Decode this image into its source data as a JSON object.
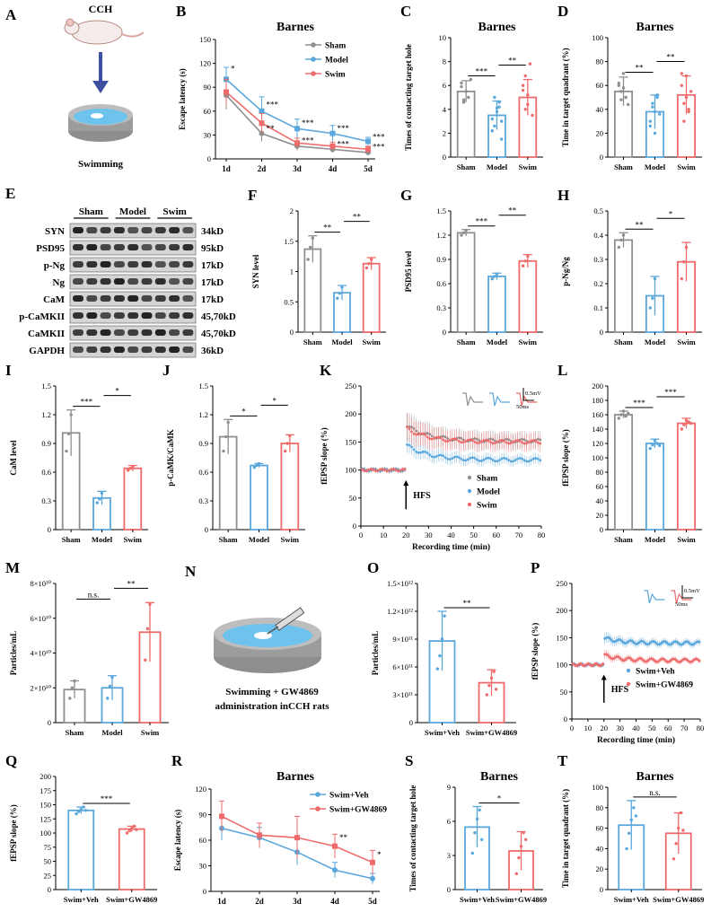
{
  "colors": {
    "sham": "#8f8f8f",
    "model": "#5aa7dc",
    "swim": "#ef6b6b",
    "swimveh": "#5aa7dc",
    "gw": "#ef6b6b"
  },
  "illustrations": {
    "A": {
      "label": "A",
      "title": "CCH",
      "caption": "Swimming"
    },
    "N": {
      "label": "N",
      "caption_line1": "Swimming + GW4869",
      "caption_line2": "administration inCCH rats"
    }
  },
  "western": {
    "label": "E",
    "groups": [
      "Sham",
      "Model",
      "Swim"
    ],
    "rows": [
      {
        "protein": "SYN",
        "kd": "34kD"
      },
      {
        "protein": "PSD95",
        "kd": "95kD"
      },
      {
        "protein": "p-Ng",
        "kd": "17kD"
      },
      {
        "protein": "Ng",
        "kd": "17kD"
      },
      {
        "protein": "CaM",
        "kd": "17kD"
      },
      {
        "protein": "p-CaMKII",
        "kd": "45,70kD"
      },
      {
        "protein": "CaMKII",
        "kd": "45,70kD"
      },
      {
        "protein": "GAPDH",
        "kd": "36kD"
      }
    ]
  },
  "chart_data": [
    {
      "id": "B",
      "type": "line",
      "title": "Barnes",
      "ylabel": "Escape latency (s)",
      "xlabel": "",
      "categories": [
        "1d",
        "2d",
        "3d",
        "4d",
        "5d"
      ],
      "ylim": [
        0,
        150
      ],
      "yticks": [
        0,
        30,
        60,
        90,
        120,
        150
      ],
      "legend": "top-right",
      "series": [
        {
          "name": "Sham",
          "color": "sham",
          "values": [
            80,
            32,
            16,
            12,
            8
          ],
          "errors": [
            18,
            10,
            5,
            4,
            3
          ]
        },
        {
          "name": "Model",
          "color": "model",
          "values": [
            100,
            60,
            38,
            32,
            22
          ],
          "errors": [
            15,
            18,
            12,
            10,
            5
          ]
        },
        {
          "name": "Swim",
          "color": "swim",
          "values": [
            84,
            45,
            20,
            16,
            12
          ],
          "errors": [
            16,
            12,
            6,
            5,
            4
          ]
        }
      ],
      "annotations": [
        {
          "cat": 0,
          "value": 110,
          "text": "*"
        },
        {
          "cat": 1,
          "value": 65,
          "text": "***"
        },
        {
          "cat": 1,
          "value": 35,
          "text": "**"
        },
        {
          "cat": 2,
          "value": 42,
          "text": "***"
        },
        {
          "cat": 2,
          "value": 20,
          "text": "***"
        },
        {
          "cat": 3,
          "value": 35,
          "text": "***"
        },
        {
          "cat": 3,
          "value": 15,
          "text": "***"
        },
        {
          "cat": 4,
          "value": 24,
          "text": "***"
        },
        {
          "cat": 4,
          "value": 12,
          "text": "***"
        }
      ]
    },
    {
      "id": "C",
      "type": "bar",
      "title": "Barnes",
      "ylabel": "Times of contacting target hole",
      "categories": [
        "Sham",
        "Model",
        "Swim"
      ],
      "colors": [
        "sham",
        "model",
        "swim"
      ],
      "values": [
        5.5,
        3.5,
        5.0
      ],
      "errors": [
        0.9,
        1.2,
        1.5
      ],
      "ylim": [
        0,
        10
      ],
      "yticks": [
        0,
        2,
        4,
        6,
        8,
        10
      ],
      "points": [
        [
          6.2,
          4.8,
          5.5,
          5.0,
          6.5,
          5.9,
          4.6
        ],
        [
          3.2,
          2.6,
          4.1,
          4.6,
          3.0,
          2.2,
          5.0,
          3.8,
          4.2,
          1.5
        ],
        [
          6.0,
          4.0,
          5.2,
          7.8,
          3.5,
          5.6,
          6.8,
          4.4
        ]
      ],
      "sig": [
        {
          "a": 0,
          "b": 1,
          "level": 1,
          "text": "***"
        },
        {
          "a": 1,
          "b": 2,
          "level": 2,
          "text": "**"
        }
      ]
    },
    {
      "id": "D",
      "type": "bar",
      "title": "Barnes",
      "ylabel": "Time in target quadrant (%)",
      "categories": [
        "Sham",
        "Model",
        "Swim"
      ],
      "colors": [
        "sham",
        "model",
        "swim"
      ],
      "values": [
        55,
        38,
        52
      ],
      "errors": [
        12,
        14,
        16
      ],
      "ylim": [
        0,
        100
      ],
      "yticks": [
        0,
        20,
        40,
        60,
        80,
        100
      ],
      "points": [
        [
          60,
          48,
          70,
          50,
          44,
          62,
          55,
          58
        ],
        [
          30,
          42,
          20,
          50,
          36,
          26,
          45,
          38,
          52
        ],
        [
          60,
          45,
          68,
          38,
          55,
          70,
          30,
          50,
          40
        ]
      ],
      "sig": [
        {
          "a": 0,
          "b": 1,
          "level": 1,
          "text": "**"
        },
        {
          "a": 1,
          "b": 2,
          "level": 2,
          "text": "**"
        }
      ]
    },
    {
      "id": "F",
      "type": "bar",
      "title": "",
      "ylabel": "SYN level",
      "categories": [
        "Sham",
        "Model",
        "Swim"
      ],
      "colors": [
        "sham",
        "model",
        "swim"
      ],
      "values": [
        1.37,
        0.65,
        1.13
      ],
      "errors": [
        0.22,
        0.12,
        0.1
      ],
      "ylim": [
        0,
        2.0
      ],
      "yticks": [
        0.0,
        0.5,
        1.0,
        1.5,
        2.0
      ],
      "points": [
        [
          1.2,
          1.4,
          1.55
        ],
        [
          0.56,
          0.64,
          0.74
        ],
        [
          1.06,
          1.13,
          1.2
        ]
      ],
      "sig": [
        {
          "a": 0,
          "b": 1,
          "level": 1,
          "text": "**"
        },
        {
          "a": 1,
          "b": 2,
          "level": 2,
          "text": "**"
        }
      ]
    },
    {
      "id": "G",
      "type": "bar",
      "title": "",
      "ylabel": "PSD95 level",
      "categories": [
        "Sham",
        "Model",
        "Swim"
      ],
      "colors": [
        "sham",
        "model",
        "swim"
      ],
      "values": [
        1.23,
        0.69,
        0.88
      ],
      "errors": [
        0.04,
        0.04,
        0.08
      ],
      "ylim": [
        0,
        1.5
      ],
      "yticks": [
        0.0,
        0.3,
        0.6,
        0.9,
        1.2,
        1.5
      ],
      "points": [
        [
          1.2,
          1.23,
          1.26
        ],
        [
          0.66,
          0.69,
          0.72
        ],
        [
          0.82,
          0.88,
          0.94
        ]
      ],
      "sig": [
        {
          "a": 0,
          "b": 1,
          "level": 1,
          "text": "***"
        },
        {
          "a": 1,
          "b": 2,
          "level": 2,
          "text": "**"
        }
      ]
    },
    {
      "id": "H",
      "type": "bar",
      "title": "",
      "ylabel": "p-Ng/Ng",
      "categories": [
        "Sham",
        "Model",
        "Swim"
      ],
      "colors": [
        "sham",
        "model",
        "swim"
      ],
      "values": [
        0.38,
        0.15,
        0.29
      ],
      "errors": [
        0.03,
        0.08,
        0.08
      ],
      "ylim": [
        0,
        0.5
      ],
      "yticks": [
        0.0,
        0.1,
        0.2,
        0.3,
        0.4,
        0.5
      ],
      "points": [
        [
          0.35,
          0.38,
          0.4
        ],
        [
          0.1,
          0.14,
          0.22
        ],
        [
          0.22,
          0.29,
          0.35
        ]
      ],
      "sig": [
        {
          "a": 0,
          "b": 1,
          "level": 1,
          "text": "**"
        },
        {
          "a": 1,
          "b": 2,
          "level": 2,
          "text": "*"
        }
      ]
    },
    {
      "id": "I",
      "type": "bar",
      "title": "",
      "ylabel": "CaM level",
      "categories": [
        "Sham",
        "Model",
        "Swim"
      ],
      "colors": [
        "sham",
        "model",
        "swim"
      ],
      "values": [
        1.01,
        0.33,
        0.64
      ],
      "errors": [
        0.24,
        0.07,
        0.03
      ],
      "ylim": [
        0,
        1.5
      ],
      "yticks": [
        0.0,
        0.3,
        0.6,
        0.9,
        1.2,
        1.5
      ],
      "points": [
        [
          0.82,
          1.0,
          1.2
        ],
        [
          0.28,
          0.32,
          0.38
        ],
        [
          0.62,
          0.64,
          0.66
        ]
      ],
      "sig": [
        {
          "a": 0,
          "b": 1,
          "level": 1,
          "text": "***"
        },
        {
          "a": 1,
          "b": 2,
          "level": 2,
          "text": "*"
        }
      ]
    },
    {
      "id": "J",
      "type": "bar",
      "title": "",
      "ylabel": "p-CaMK/CaMK",
      "categories": [
        "Sham",
        "Model",
        "Swim"
      ],
      "colors": [
        "sham",
        "model",
        "swim"
      ],
      "values": [
        0.97,
        0.67,
        0.9
      ],
      "errors": [
        0.18,
        0.02,
        0.09
      ],
      "ylim": [
        0,
        1.5
      ],
      "yticks": [
        0.0,
        0.3,
        0.6,
        0.9,
        1.2,
        1.5
      ],
      "points": [
        [
          0.82,
          0.97,
          1.12
        ],
        [
          0.65,
          0.67,
          0.69
        ],
        [
          0.82,
          0.9,
          0.98
        ]
      ],
      "sig": [
        {
          "a": 0,
          "b": 1,
          "level": 1,
          "text": "*"
        },
        {
          "a": 1,
          "b": 2,
          "level": 2,
          "text": "*"
        }
      ]
    },
    {
      "id": "K",
      "type": "timecourse",
      "ylabel": "fEPSP slope (%)",
      "xlabel": "Recording time (min)",
      "xlim": [
        0,
        80
      ],
      "xticks": [
        0,
        10,
        20,
        30,
        40,
        50,
        60,
        70,
        80
      ],
      "ylim": [
        0,
        250
      ],
      "yticks": [
        0,
        50,
        100,
        150,
        200,
        250
      ],
      "hfs_time": 20,
      "hfs_label": "HFS",
      "scale_label": "0.5mV",
      "scale_time": "50ms",
      "legend": "bottom-right",
      "series": [
        {
          "name": "Sham",
          "color": "sham",
          "baseline": 100,
          "peak": 180,
          "plateau": 152,
          "err": 25
        },
        {
          "name": "Model",
          "color": "model",
          "baseline": 100,
          "peak": 145,
          "plateau": 118,
          "err": 15
        },
        {
          "name": "Swim",
          "color": "swim",
          "baseline": 100,
          "peak": 175,
          "plateau": 150,
          "err": 25
        }
      ]
    },
    {
      "id": "L",
      "type": "bar",
      "title": "",
      "ylabel": "fEPSP slope (%)",
      "categories": [
        "Sham",
        "Model",
        "Swim"
      ],
      "colors": [
        "sham",
        "model",
        "swim"
      ],
      "values": [
        160,
        120,
        148
      ],
      "errors": [
        5,
        6,
        7
      ],
      "ylim": [
        0,
        200
      ],
      "yticks": [
        0,
        20,
        40,
        60,
        80,
        100,
        120,
        140,
        160,
        180,
        200
      ],
      "points": [
        [
          155,
          160,
          165,
          158,
          162
        ],
        [
          113,
          118,
          124,
          120,
          117
        ],
        [
          140,
          146,
          152,
          150,
          148
        ]
      ],
      "sig": [
        {
          "a": 0,
          "b": 1,
          "level": 1,
          "text": "***"
        },
        {
          "a": 1,
          "b": 2,
          "level": 2,
          "text": "***"
        }
      ]
    },
    {
      "id": "M",
      "type": "bar",
      "title": "",
      "ylabel": "Particles/mL",
      "categories": [
        "Sham",
        "Model",
        "Swim"
      ],
      "colors": [
        "sham",
        "model",
        "swim"
      ],
      "values": [
        1.9,
        2.0,
        5.2
      ],
      "errors": [
        0.5,
        0.7,
        1.7
      ],
      "ylim": [
        0,
        8
      ],
      "yticks": [
        0,
        2,
        4,
        6,
        8
      ],
      "yticklabels": [
        "0",
        "2×10¹⁰",
        "4×10¹⁰",
        "6×10¹⁰",
        "8×10¹⁰"
      ],
      "points": [
        [
          1.4,
          2.0,
          2.4
        ],
        [
          1.4,
          2.1,
          2.6
        ],
        [
          3.6,
          5.4,
          6.8
        ]
      ],
      "sig": [
        {
          "a": 0,
          "b": 1,
          "level": 1,
          "text": "n.s."
        },
        {
          "a": 1,
          "b": 2,
          "level": 2,
          "text": "**"
        }
      ]
    },
    {
      "id": "O",
      "type": "bar",
      "title": "",
      "ylabel": "Particles/mL",
      "categories": [
        "Swim+Veh",
        "Swim+GW4869"
      ],
      "colors": [
        "swimveh",
        "gw"
      ],
      "values": [
        8.8,
        4.3
      ],
      "errors": [
        3.2,
        1.4
      ],
      "ylim": [
        0,
        15
      ],
      "yticks": [
        0,
        3,
        6,
        9,
        12,
        15
      ],
      "yticklabels": [
        "0",
        "3×10¹¹",
        "6×10¹¹",
        "9×10¹¹",
        "1.2×10¹²",
        "1.5×10¹²"
      ],
      "points": [
        [
          5.8,
          7.2,
          9.0,
          11.5
        ],
        [
          3.0,
          4.0,
          4.8,
          5.5,
          3.6
        ]
      ],
      "sig": [
        {
          "a": 0,
          "b": 1,
          "level": 1,
          "text": "**"
        }
      ]
    },
    {
      "id": "P",
      "type": "timecourse",
      "ylabel": "fEPSP slope (%)",
      "xlabel": "Recording time (min)",
      "xlim": [
        0,
        80
      ],
      "xticks": [
        0,
        10,
        20,
        30,
        40,
        50,
        60,
        70,
        80
      ],
      "ylim": [
        0,
        250
      ],
      "yticks": [
        0,
        50,
        100,
        150,
        200,
        250
      ],
      "hfs_time": 20,
      "hfs_label": "HFS",
      "scale_label": "0.5mV",
      "scale_time": "50ms",
      "legend": "bottom-right",
      "series": [
        {
          "name": "Swim+Veh",
          "color": "swimveh",
          "baseline": 100,
          "peak": 150,
          "plateau": 140,
          "err": 10
        },
        {
          "name": "Swim+GW4869",
          "color": "gw",
          "baseline": 100,
          "peak": 118,
          "plateau": 108,
          "err": 8
        }
      ]
    },
    {
      "id": "Q",
      "type": "bar",
      "title": "",
      "ylabel": "fEPSP slope (%)",
      "categories": [
        "Swim+Veh",
        "Swim+GW4869"
      ],
      "colors": [
        "swimveh",
        "gw"
      ],
      "values": [
        140,
        107
      ],
      "errors": [
        6,
        5
      ],
      "ylim": [
        0,
        200
      ],
      "yticks": [
        0,
        25,
        50,
        75,
        100,
        125,
        150,
        175,
        200
      ],
      "points": [
        [
          134,
          138,
          142,
          146,
          140
        ],
        [
          100,
          104,
          108,
          112,
          106
        ]
      ],
      "sig": [
        {
          "a": 0,
          "b": 1,
          "level": 1,
          "text": "***"
        }
      ]
    },
    {
      "id": "R",
      "type": "line",
      "title": "Barnes",
      "ylabel": "Escape latency (s)",
      "xlabel": "",
      "categories": [
        "1d",
        "2d",
        "3d",
        "4d",
        "5d"
      ],
      "ylim": [
        0,
        120
      ],
      "yticks": [
        0,
        30,
        60,
        90,
        120
      ],
      "legend": "top-right",
      "series": [
        {
          "name": "Swim+Veh",
          "color": "swimveh",
          "values": [
            74,
            63,
            46,
            25,
            15
          ],
          "errors": [
            14,
            12,
            15,
            9,
            6
          ]
        },
        {
          "name": "Swim+GW4869",
          "color": "gw",
          "values": [
            88,
            66,
            63,
            53,
            34
          ],
          "errors": [
            18,
            14,
            25,
            14,
            14
          ]
        }
      ],
      "annotations": [
        {
          "cat": 3,
          "value": 60,
          "text": "**"
        },
        {
          "cat": 4,
          "value": 40,
          "text": "*"
        }
      ]
    },
    {
      "id": "S",
      "type": "bar",
      "title": "Barnes",
      "ylabel": "Times of contacting target hole",
      "categories": [
        "Swim+Veh",
        "Swim+GW4869"
      ],
      "colors": [
        "swimveh",
        "gw"
      ],
      "values": [
        5.5,
        3.4
      ],
      "errors": [
        1.8,
        1.7
      ],
      "ylim": [
        0,
        9
      ],
      "yticks": [
        0,
        3,
        6,
        9
      ],
      "points": [
        [
          3.2,
          5.0,
          6.2,
          7.0,
          4.4
        ],
        [
          1.4,
          2.8,
          3.8,
          5.0,
          4.4
        ]
      ],
      "sig": [
        {
          "a": 0,
          "b": 1,
          "level": 1,
          "text": "*"
        }
      ]
    },
    {
      "id": "T",
      "type": "bar",
      "title": "Barnes",
      "ylabel": "Time in target quadrant (%)",
      "categories": [
        "Swim+Veh",
        "Swim+GW4869"
      ],
      "colors": [
        "swimveh",
        "gw"
      ],
      "values": [
        63,
        55
      ],
      "errors": [
        24,
        20
      ],
      "ylim": [
        0,
        100
      ],
      "yticks": [
        0,
        20,
        40,
        60,
        80,
        100
      ],
      "points": [
        [
          40,
          55,
          68,
          80,
          72
        ],
        [
          30,
          45,
          60,
          75,
          58
        ]
      ],
      "sig": [
        {
          "a": 0,
          "b": 1,
          "level": 1,
          "text": "n.s."
        }
      ]
    }
  ]
}
